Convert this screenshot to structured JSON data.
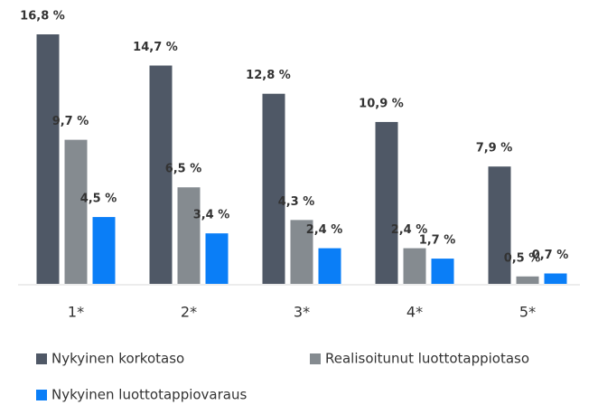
{
  "chart_data": {
    "type": "bar",
    "categories": [
      "1*",
      "2*",
      "3*",
      "4*",
      "5*"
    ],
    "series": [
      {
        "name": "Nykyinen korkotaso",
        "color": "#4f5866",
        "values": [
          16.8,
          14.7,
          12.8,
          10.9,
          7.9
        ],
        "value_labels": [
          "16,8 %",
          "14,7 %",
          "12,8 %",
          "10,9 %",
          "7,9 %"
        ]
      },
      {
        "name": "Realisoitunut luottotappiotaso",
        "color": "#858b90",
        "values": [
          9.7,
          6.5,
          4.3,
          2.4,
          0.5
        ],
        "value_labels": [
          "9,7 %",
          "6,5 %",
          "4,3 %",
          "2,4 %",
          "0,5 %"
        ]
      },
      {
        "name": "Nykyinen luottotappiovaraus",
        "color": "#0a7ef7",
        "values": [
          4.5,
          3.4,
          2.4,
          1.7,
          0.7
        ],
        "value_labels": [
          "4,5 %",
          "3,4 %",
          "2,4 %",
          "1,7 %",
          "0,7 %"
        ]
      }
    ]
  }
}
